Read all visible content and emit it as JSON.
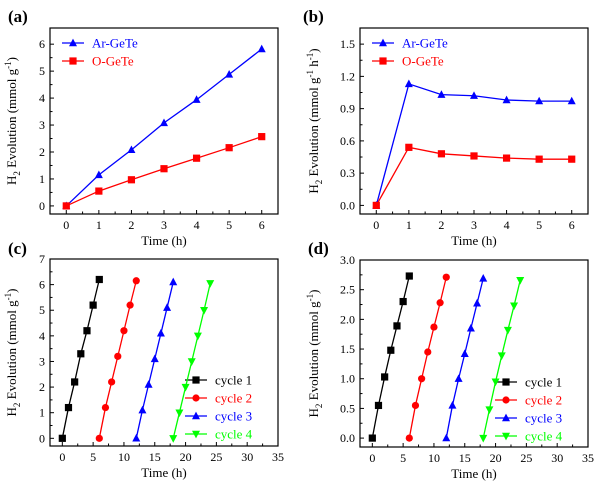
{
  "chart_data": [
    {
      "panel": "(a)",
      "type": "line",
      "x": [
        0,
        1,
        2,
        3,
        4,
        5,
        6
      ],
      "series": [
        {
          "name": "Ar-GeTe",
          "color": "#0000ff",
          "marker": "triangle",
          "values": [
            0,
            1.15,
            2.08,
            3.08,
            3.94,
            4.88,
            5.82
          ]
        },
        {
          "name": "O-GeTe",
          "color": "#ff0000",
          "marker": "square",
          "values": [
            0,
            0.55,
            0.97,
            1.38,
            1.77,
            2.16,
            2.57
          ]
        }
      ],
      "xlabel": "Time (h)",
      "ylabel_main": "H",
      "ylabel_sub": "2",
      "ylabel_rest": " Evolution (mmol g",
      "ylabel_sup": "-1",
      "ylabel_end": ")",
      "xlim": [
        -0.5,
        6.5
      ],
      "ylim": [
        -0.3,
        6.6
      ],
      "xticks": [
        0,
        1,
        2,
        3,
        4,
        5,
        6
      ],
      "yticks": [
        0,
        1,
        2,
        3,
        4,
        5,
        6
      ],
      "legend_position": "top-left"
    },
    {
      "panel": "(b)",
      "type": "line",
      "x": [
        0,
        1,
        2,
        3,
        4,
        5,
        6
      ],
      "series": [
        {
          "name": "Ar-GeTe",
          "color": "#0000ff",
          "marker": "triangle",
          "values": [
            0,
            1.13,
            1.03,
            1.02,
            0.98,
            0.97,
            0.97
          ]
        },
        {
          "name": "O-GeTe",
          "color": "#ff0000",
          "marker": "square",
          "values": [
            0,
            0.54,
            0.48,
            0.46,
            0.44,
            0.43,
            0.43
          ]
        }
      ],
      "xlabel": "Time (h)",
      "ylabel_main": "H",
      "ylabel_sub": "2",
      "ylabel_rest": " Evolution (mmol g",
      "ylabel_sup": "-1",
      "ylabel_mid": " h",
      "ylabel_sup2": "-1",
      "ylabel_end": ")",
      "xlim": [
        -0.5,
        6.5
      ],
      "ylim": [
        -0.08,
        1.65
      ],
      "xticks": [
        0,
        1,
        2,
        3,
        4,
        5,
        6
      ],
      "yticks": [
        "0.0",
        "0.3",
        "0.6",
        "0.9",
        "1.2",
        "1.5"
      ],
      "legend_position": "top-left"
    },
    {
      "panel": "(c)",
      "type": "line",
      "series": [
        {
          "name": "cycle 1",
          "color": "#000000",
          "marker": "square",
          "x": [
            0,
            1,
            2,
            3,
            4,
            5,
            6
          ],
          "values": [
            0,
            1.2,
            2.2,
            3.3,
            4.2,
            5.2,
            6.2
          ]
        },
        {
          "name": "cycle 2",
          "color": "#ff0000",
          "marker": "circle",
          "x": [
            6,
            7,
            8,
            9,
            10,
            11,
            12
          ],
          "values": [
            0,
            1.2,
            2.2,
            3.2,
            4.2,
            5.2,
            6.15
          ]
        },
        {
          "name": "cycle 3",
          "color": "#0000ff",
          "marker": "triangle",
          "x": [
            12,
            13,
            14,
            15,
            16,
            17,
            18
          ],
          "values": [
            0,
            1.1,
            2.1,
            3.1,
            4.1,
            5.1,
            6.1
          ]
        },
        {
          "name": "cycle 4",
          "color": "#00ff00",
          "marker": "triangle-down",
          "x": [
            18,
            19,
            20,
            21,
            22,
            23,
            24
          ],
          "values": [
            0,
            1.0,
            2.0,
            3.0,
            4.0,
            5.0,
            6.05
          ]
        }
      ],
      "xlabel": "Time (h)",
      "ylabel_main": "H",
      "ylabel_sub": "2",
      "ylabel_rest": " Evolution (mmol g",
      "ylabel_sup": "-1",
      "ylabel_end": ")",
      "xlim": [
        -2,
        35
      ],
      "ylim": [
        -0.3,
        7
      ],
      "xticks": [
        0,
        5,
        10,
        15,
        20,
        25,
        30,
        35
      ],
      "yticks": [
        0,
        1,
        2,
        3,
        4,
        5,
        6,
        7
      ],
      "legend_position": "bottom-right"
    },
    {
      "panel": "(d)",
      "type": "line",
      "series": [
        {
          "name": "cycle 1",
          "color": "#000000",
          "marker": "square",
          "x": [
            0,
            1,
            2,
            3,
            4,
            5,
            6
          ],
          "values": [
            0,
            0.55,
            1.03,
            1.48,
            1.89,
            2.3,
            2.73
          ]
        },
        {
          "name": "cycle 2",
          "color": "#ff0000",
          "marker": "circle",
          "x": [
            6,
            7,
            8,
            9,
            10,
            11,
            12
          ],
          "values": [
            0,
            0.55,
            1.0,
            1.45,
            1.87,
            2.28,
            2.71
          ]
        },
        {
          "name": "cycle 3",
          "color": "#0000ff",
          "marker": "triangle",
          "x": [
            12,
            13,
            14,
            15,
            16,
            17,
            18
          ],
          "values": [
            0,
            0.55,
            1.0,
            1.42,
            1.85,
            2.27,
            2.69
          ]
        },
        {
          "name": "cycle 4",
          "color": "#00ff00",
          "marker": "triangle-down",
          "x": [
            18,
            19,
            20,
            21,
            22,
            23,
            24
          ],
          "values": [
            0,
            0.48,
            0.95,
            1.39,
            1.82,
            2.23,
            2.66
          ]
        }
      ],
      "xlabel": "Time (h)",
      "ylabel_main": "H",
      "ylabel_sub": "2",
      "ylabel_rest": " Evolution (mmol g",
      "ylabel_sup": "-1",
      "ylabel_end": ")",
      "xlim": [
        -2,
        35
      ],
      "ylim": [
        -0.15,
        3.0
      ],
      "xticks": [
        0,
        5,
        10,
        15,
        20,
        25,
        30,
        35
      ],
      "yticks": [
        "0.0",
        "0.5",
        "1.0",
        "1.5",
        "2.0",
        "2.5",
        "3.0"
      ],
      "legend_position": "bottom-right"
    }
  ]
}
